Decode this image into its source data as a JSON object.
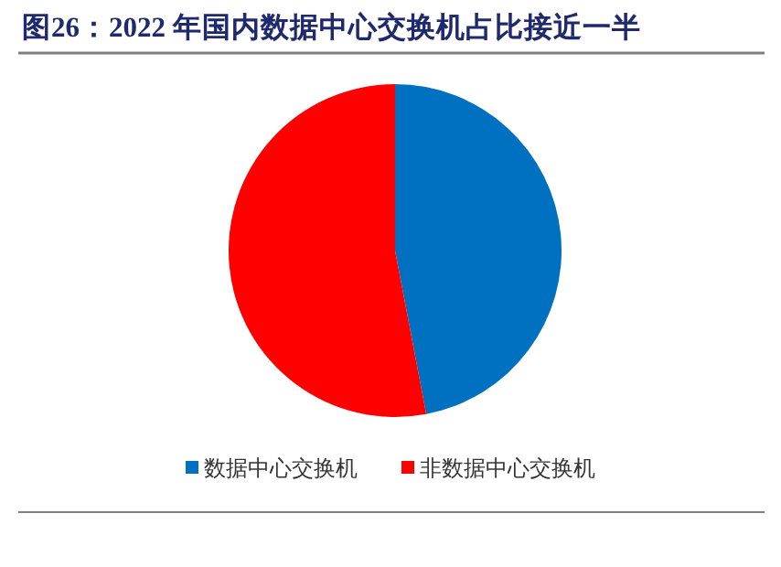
{
  "chart_data": {
    "type": "pie",
    "title": "图26：2022 年国内数据中心交换机占比接近一半",
    "categories": [
      "数据中心交换机",
      "非数据中心交换机"
    ],
    "values": [
      47,
      53
    ],
    "colors": [
      "#0070c0",
      "#ff0000"
    ],
    "legend": "bottom"
  }
}
